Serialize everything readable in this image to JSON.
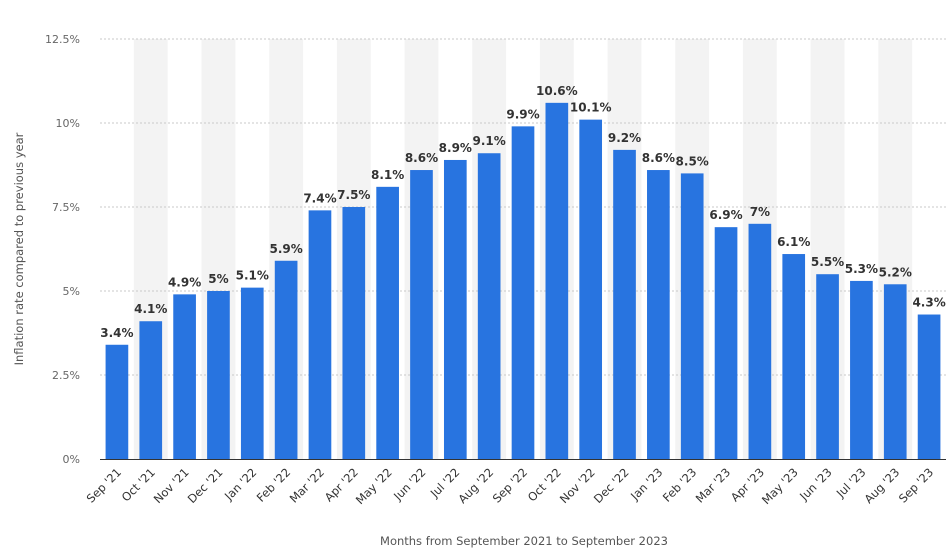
{
  "chart_data": {
    "type": "bar",
    "title": "",
    "xlabel": "Months from September 2021 to September 2023",
    "ylabel": "Inflation rate compared to previous year",
    "ylim": [
      0,
      12.5
    ],
    "yticks": [
      0,
      2.5,
      5,
      7.5,
      10,
      12.5
    ],
    "ytick_labels": [
      "0%",
      "2.5%",
      "5%",
      "7.5%",
      "10%",
      "12.5%"
    ],
    "grid": true,
    "categories": [
      "Sep '21",
      "Oct '21",
      "Nov '21",
      "Dec '21",
      "Jan '22",
      "Feb '22",
      "Mar '22",
      "Apr '22",
      "May '22",
      "Jun '22",
      "Jul '22",
      "Aug '22",
      "Sep '22",
      "Oct '22",
      "Nov '22",
      "Dec '22",
      "Jan '23",
      "Feb '23",
      "Mar '23",
      "Apr '23",
      "May '23",
      "Jun '23",
      "Jul '23",
      "Aug '23",
      "Sep '23"
    ],
    "values": [
      3.4,
      4.1,
      4.9,
      5,
      5.1,
      5.9,
      7.4,
      7.5,
      8.1,
      8.6,
      8.9,
      9.1,
      9.9,
      10.6,
      10.1,
      9.2,
      8.6,
      8.5,
      6.9,
      7,
      6.1,
      5.5,
      5.3,
      5.2,
      4.3
    ],
    "data_labels": [
      "3.4%",
      "4.1%",
      "4.9%",
      "5%",
      "5.1%",
      "5.9%",
      "7.4%",
      "7.5%",
      "8.1%",
      "8.6%",
      "8.9%",
      "9.1%",
      "9.9%",
      "10.6%",
      "10.1%",
      "9.2%",
      "8.6%",
      "8.5%",
      "6.9%",
      "7%",
      "6.1%",
      "5.5%",
      "5.3%",
      "5.2%",
      "4.3%"
    ],
    "colors": {
      "bar": "#2874e0",
      "stripe": "#f3f3f3",
      "grid": "#c8c8c8",
      "baseline": "#333333"
    }
  }
}
